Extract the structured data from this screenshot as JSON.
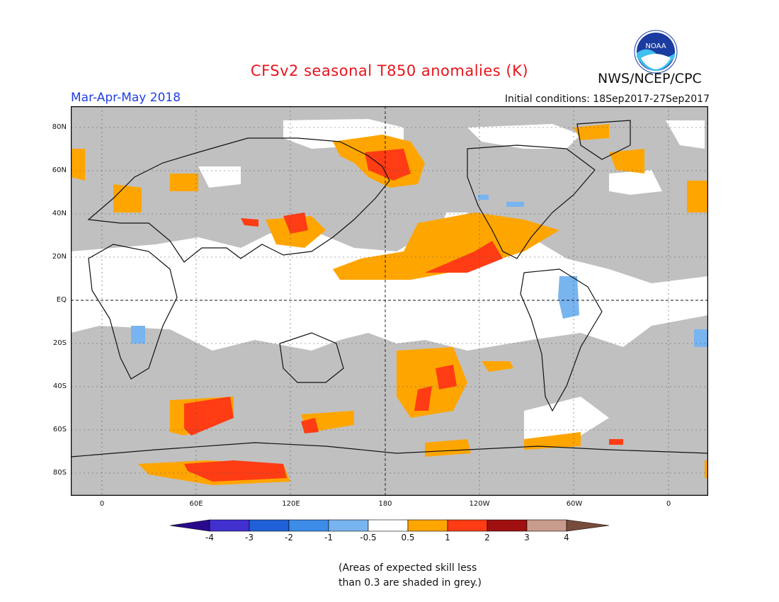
{
  "header": {
    "title": "CFSv2 seasonal T850 anomalies (K)",
    "season": "Mar-Apr-May 2018",
    "initial_conditions": "Initial conditions: 18Sep2017-27Sep2017",
    "org": "NWS/NCEP/CPC",
    "logo_text": "NOAA"
  },
  "map": {
    "lat_labels": [
      "80N",
      "60N",
      "40N",
      "20N",
      "EQ",
      "20S",
      "40S",
      "60S",
      "80S"
    ],
    "lon_labels": [
      "0",
      "60E",
      "120E",
      "180",
      "120W",
      "60W",
      "0"
    ],
    "colors": {
      "grey_mask": "#c0c0c0",
      "orange": "#ffa500",
      "red_orange": "#ff3c14",
      "light_blue": "#78b4f0"
    }
  },
  "colorbar": {
    "labels": [
      "-4",
      "-3",
      "-2",
      "-1",
      "-0.5",
      "0.5",
      "1",
      "2",
      "3",
      "4"
    ],
    "colors": [
      "#2a0a8c",
      "#4030d0",
      "#2060d8",
      "#3c8ce8",
      "#78b4f0",
      "#ffffff",
      "#ffa500",
      "#ff3c14",
      "#a01010",
      "#c89c8c",
      "#784c3c"
    ]
  },
  "note": {
    "line1": "(Areas of expected skill less",
    "line2": "than 0.3 are shaded in grey.)"
  }
}
